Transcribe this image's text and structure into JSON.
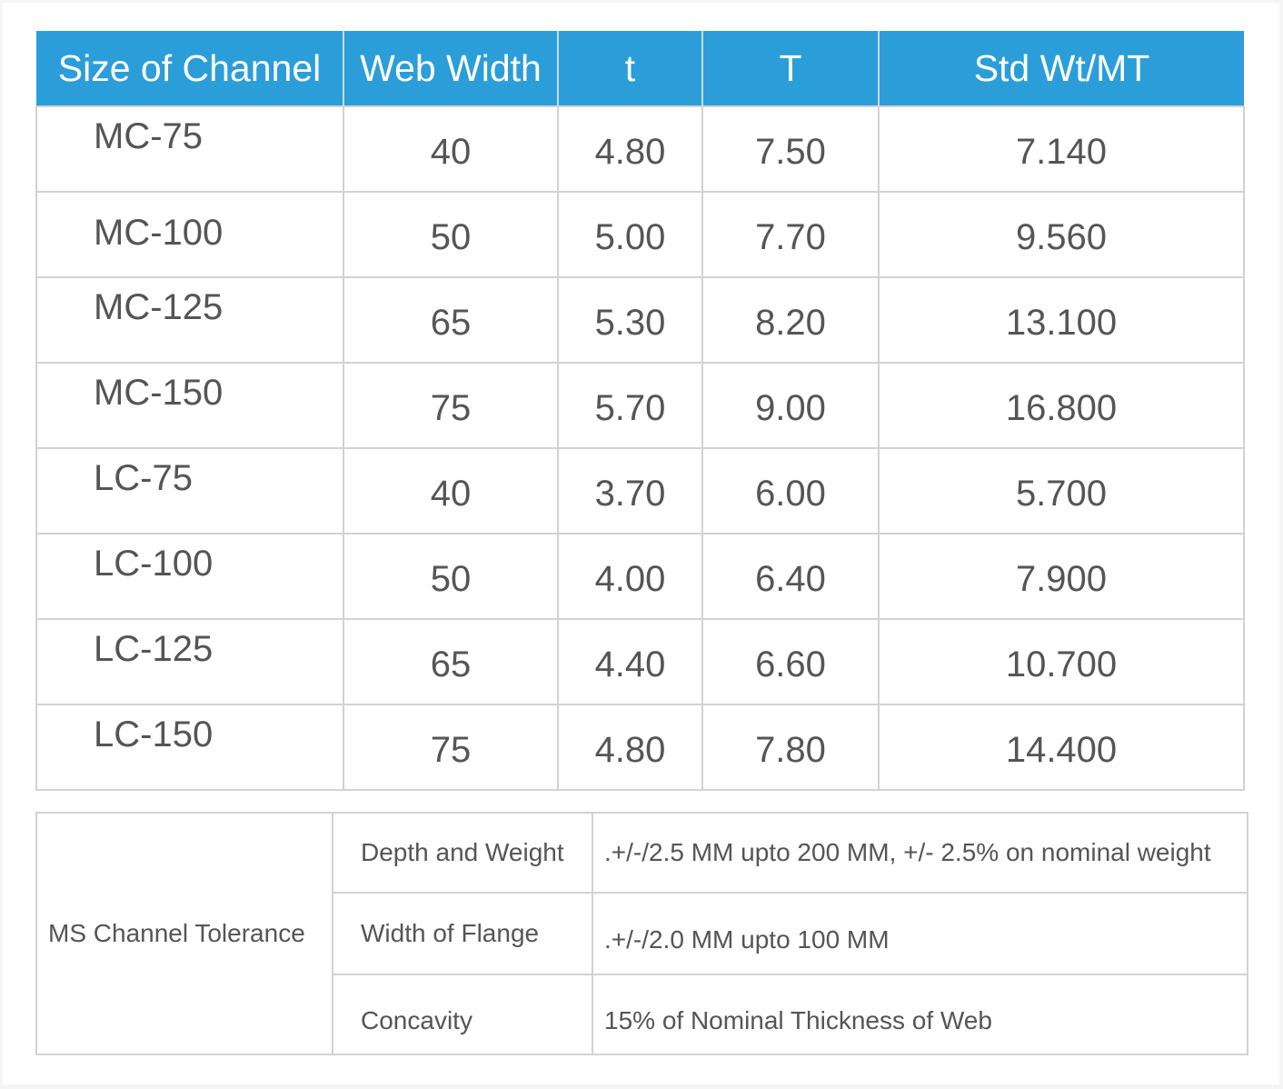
{
  "channel_table": {
    "headers": [
      "Size of Channel",
      "Web Width",
      "t",
      "T",
      "Std Wt/MT"
    ],
    "rows": [
      [
        "MC-75",
        "40",
        "4.80",
        "7.50",
        "7.140"
      ],
      [
        "MC-100",
        "50",
        "5.00",
        "7.70",
        "9.560"
      ],
      [
        "MC-125",
        "65",
        "5.30",
        "8.20",
        "13.100"
      ],
      [
        "MC-150",
        "75",
        "5.70",
        "9.00",
        "16.800"
      ],
      [
        "LC-75",
        "40",
        "3.70",
        "6.00",
        "5.700"
      ],
      [
        "LC-100",
        "50",
        "4.00",
        "6.40",
        "7.900"
      ],
      [
        "LC-125",
        "65",
        "4.40",
        "6.60",
        "10.700"
      ],
      [
        "LC-150",
        "75",
        "4.80",
        "7.80",
        "14.400"
      ]
    ]
  },
  "tolerance_table": {
    "title": "MS Channel Tolerance",
    "rows": [
      {
        "parameter": "Depth and Weight",
        "value": ".+/-/2.5 MM upto 200 MM, +/- 2.5% on nominal weight"
      },
      {
        "parameter": "Width of Flange",
        "value": ".+/-/2.0 MM upto 100 MM"
      },
      {
        "parameter": "Concavity",
        "value": "15% of Nominal Thickness of Web"
      }
    ]
  },
  "colors": {
    "header_background": "#2b9ed9",
    "header_text": "#ffffff",
    "cell_text": "#555555",
    "grid_line": "#d2d2d2"
  }
}
